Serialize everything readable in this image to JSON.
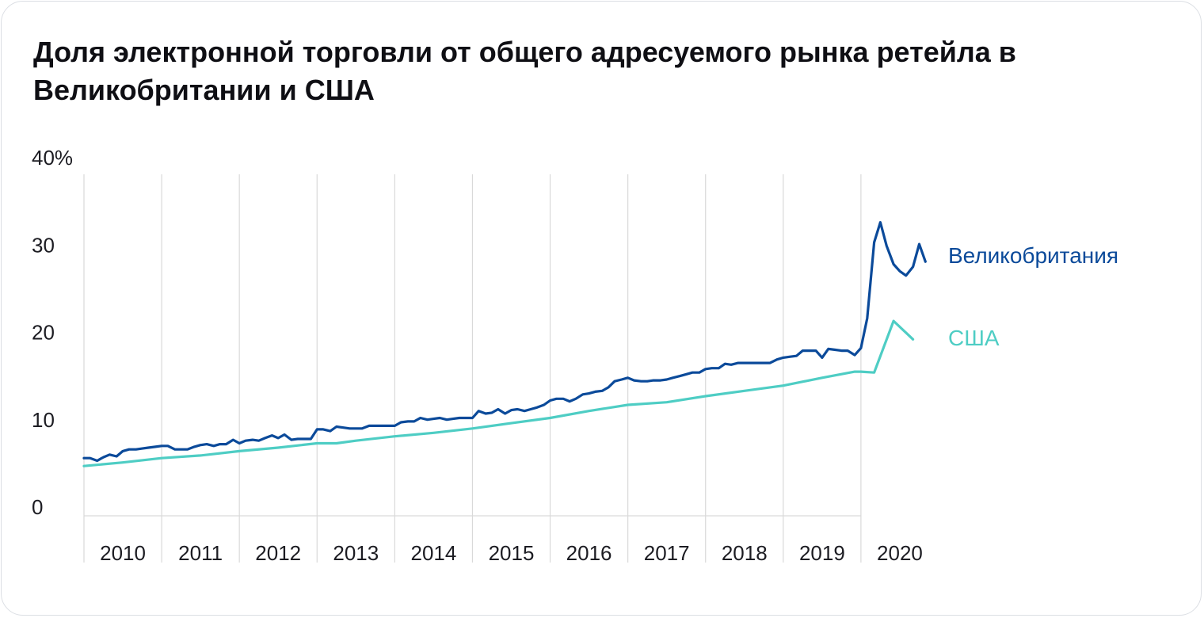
{
  "chart_data": {
    "type": "line",
    "title": "Доля электронной торговли от общего адресуемого рынка ретейла в Великобритании и США",
    "xlabel": "",
    "ylabel": "",
    "ylim": [
      0,
      40
    ],
    "xlim": [
      2010,
      2021
    ],
    "yticks": [
      {
        "value": 0,
        "label": "0"
      },
      {
        "value": 10,
        "label": "10"
      },
      {
        "value": 20,
        "label": "20"
      },
      {
        "value": 30,
        "label": "30"
      },
      {
        "value": 40,
        "label": "40%"
      }
    ],
    "xticks": [
      "2010",
      "2011",
      "2012",
      "2013",
      "2014",
      "2015",
      "2016",
      "2017",
      "2018",
      "2019",
      "2020"
    ],
    "grid": "vertical lines at year boundaries",
    "legend": "direct labels at right end of lines",
    "colors": {
      "uk": "#0b4a9a",
      "us": "#4ecdc4",
      "grid": "#d9d9d9"
    },
    "series": [
      {
        "name": "Великобритания",
        "color": "#0b4a9a",
        "x": [
          2010.0,
          2010.08,
          2010.17,
          2010.25,
          2010.33,
          2010.42,
          2010.5,
          2010.58,
          2010.67,
          2010.75,
          2010.83,
          2010.92,
          2011.0,
          2011.08,
          2011.17,
          2011.25,
          2011.33,
          2011.42,
          2011.5,
          2011.58,
          2011.67,
          2011.75,
          2011.83,
          2011.92,
          2012.0,
          2012.08,
          2012.17,
          2012.25,
          2012.33,
          2012.42,
          2012.5,
          2012.58,
          2012.67,
          2012.75,
          2012.83,
          2012.92,
          2013.0,
          2013.08,
          2013.17,
          2013.25,
          2013.33,
          2013.42,
          2013.5,
          2013.58,
          2013.67,
          2013.75,
          2013.83,
          2013.92,
          2014.0,
          2014.08,
          2014.17,
          2014.25,
          2014.33,
          2014.42,
          2014.5,
          2014.58,
          2014.67,
          2014.75,
          2014.83,
          2014.92,
          2015.0,
          2015.08,
          2015.17,
          2015.25,
          2015.33,
          2015.42,
          2015.5,
          2015.58,
          2015.67,
          2015.75,
          2015.83,
          2015.92,
          2016.0,
          2016.08,
          2016.17,
          2016.25,
          2016.33,
          2016.42,
          2016.5,
          2016.58,
          2016.67,
          2016.75,
          2016.83,
          2016.92,
          2017.0,
          2017.08,
          2017.17,
          2017.25,
          2017.33,
          2017.42,
          2017.5,
          2017.58,
          2017.67,
          2017.75,
          2017.83,
          2017.92,
          2018.0,
          2018.08,
          2018.17,
          2018.25,
          2018.33,
          2018.42,
          2018.5,
          2018.58,
          2018.67,
          2018.75,
          2018.83,
          2018.92,
          2019.0,
          2019.08,
          2019.17,
          2019.25,
          2019.33,
          2019.42,
          2019.5,
          2019.58,
          2019.67,
          2019.75,
          2019.83,
          2019.92,
          2020.0,
          2020.08,
          2020.17,
          2020.25,
          2020.33,
          2020.42,
          2020.5,
          2020.58,
          2020.67,
          2020.75,
          2020.83
        ],
        "values": [
          6.6,
          6.6,
          6.3,
          6.7,
          7.0,
          6.8,
          7.4,
          7.6,
          7.6,
          7.7,
          7.8,
          7.9,
          8.0,
          8.0,
          7.6,
          7.6,
          7.6,
          7.9,
          8.1,
          8.2,
          8.0,
          8.2,
          8.2,
          8.7,
          8.3,
          8.6,
          8.7,
          8.6,
          8.9,
          9.2,
          8.9,
          9.3,
          8.7,
          8.8,
          8.8,
          8.8,
          9.9,
          9.9,
          9.7,
          10.2,
          10.1,
          10.0,
          10.0,
          10.0,
          10.3,
          10.3,
          10.3,
          10.3,
          10.3,
          10.7,
          10.8,
          10.8,
          11.2,
          11.0,
          11.1,
          11.2,
          11.0,
          11.1,
          11.2,
          11.2,
          11.2,
          12.0,
          11.7,
          11.8,
          12.2,
          11.7,
          12.1,
          12.2,
          12.0,
          12.2,
          12.4,
          12.7,
          13.2,
          13.4,
          13.4,
          13.1,
          13.4,
          13.9,
          14.0,
          14.2,
          14.3,
          14.7,
          15.4,
          15.6,
          15.8,
          15.5,
          15.4,
          15.4,
          15.5,
          15.5,
          15.6,
          15.8,
          16.0,
          16.2,
          16.4,
          16.4,
          16.8,
          16.9,
          16.9,
          17.4,
          17.3,
          17.5,
          17.5,
          17.5,
          17.5,
          17.5,
          17.5,
          17.9,
          18.1,
          18.2,
          18.3,
          18.9,
          18.9,
          18.9,
          18.1,
          19.1,
          19.0,
          18.9,
          18.9,
          18.4,
          19.2,
          22.6,
          31.3,
          33.6,
          30.9,
          28.8,
          28.0,
          27.5,
          28.5,
          31.1,
          29.1
        ]
      },
      {
        "name": "США",
        "color": "#4ecdc4",
        "x": [
          2010.0,
          2010.5,
          2011.0,
          2011.5,
          2012.0,
          2012.5,
          2013.0,
          2013.25,
          2013.5,
          2014.0,
          2014.5,
          2015.0,
          2015.5,
          2016.0,
          2016.5,
          2017.0,
          2017.5,
          2018.0,
          2018.5,
          2019.0,
          2019.5,
          2019.92,
          2020.0,
          2020.17,
          2020.42,
          2020.67
        ],
        "values": [
          5.7,
          6.1,
          6.6,
          6.9,
          7.4,
          7.8,
          8.3,
          8.3,
          8.6,
          9.1,
          9.5,
          10.0,
          10.6,
          11.2,
          12.0,
          12.7,
          13.0,
          13.7,
          14.3,
          14.9,
          15.8,
          16.5,
          16.5,
          16.4,
          22.3,
          20.2
        ]
      }
    ]
  }
}
